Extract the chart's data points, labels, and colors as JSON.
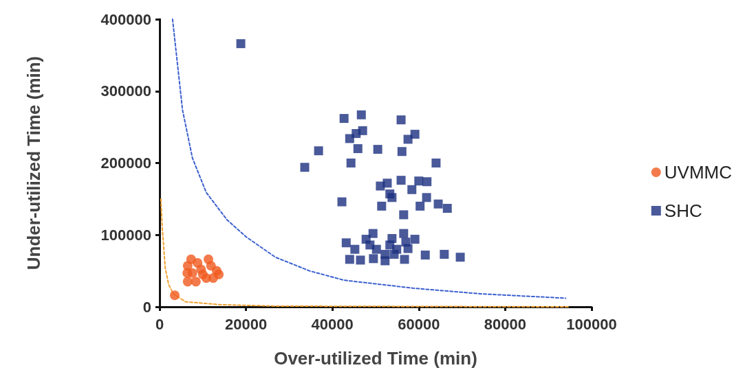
{
  "chart_data": {
    "type": "scatter",
    "xlabel": "Over-utilized Time (min)",
    "ylabel": "Under-utilized Time (min)",
    "xlim": [
      0,
      100000
    ],
    "xticks": [
      0,
      20000,
      40000,
      60000,
      80000,
      100000
    ],
    "ylim": [
      0,
      400000
    ],
    "yticks": [
      0,
      100000,
      200000,
      300000,
      400000
    ],
    "grid": false,
    "legend": "right",
    "series": [
      {
        "name": "UVMMC",
        "color": "#f05a1e",
        "marker": "circle",
        "x": [
          3500,
          7300,
          6500,
          8800,
          9600,
          11300,
          11900,
          13200,
          13700,
          6500,
          8400,
          10800,
          10000,
          7600,
          6400,
          12400
        ],
        "values": [
          16000,
          66000,
          57000,
          61000,
          52000,
          66000,
          57000,
          50000,
          45000,
          35000,
          35000,
          40000,
          45000,
          47000,
          47000,
          40000
        ]
      },
      {
        "name": "SHC",
        "color": "#1c2f7f",
        "marker": "square",
        "x": [
          18800,
          42700,
          46700,
          55900,
          47000,
          45500,
          44000,
          59100,
          57500,
          36800,
          45900,
          50500,
          56100,
          44300,
          33600,
          64000,
          42200,
          51100,
          52700,
          55900,
          60000,
          61900,
          58400,
          53300,
          53800,
          61800,
          60300,
          51400,
          64500,
          66600,
          56500,
          43200,
          45200,
          44000,
          46500,
          47800,
          49400,
          48700,
          50200,
          49500,
          52200,
          52200,
          53800,
          53300,
          54900,
          56500,
          57000,
          59100,
          57500,
          56700,
          61500,
          65900,
          69600,
          54300
        ],
        "values": [
          366000,
          262000,
          267000,
          260000,
          245000,
          241000,
          234000,
          240000,
          233000,
          217000,
          220000,
          219000,
          216000,
          200000,
          194000,
          200000,
          146000,
          168000,
          172000,
          176000,
          175000,
          174000,
          163000,
          157000,
          152000,
          152000,
          140000,
          140000,
          143000,
          137000,
          128000,
          89000,
          80000,
          66000,
          65000,
          94000,
          102000,
          86000,
          80000,
          67000,
          73000,
          64000,
          95000,
          86000,
          80000,
          102000,
          90000,
          94000,
          81000,
          66000,
          72000,
          73000,
          69000,
          73000
        ]
      },
      {
        "type": "line",
        "color": "#f0a030",
        "marker": "none",
        "line_style": "dashed",
        "x": [
          300,
          600,
          1300,
          2100,
          3200,
          6000,
          14000,
          26800,
          95000
        ],
        "values": [
          150000,
          112000,
          54000,
          31000,
          18000,
          7000,
          3000,
          1000,
          0
        ]
      },
      {
        "type": "line",
        "color": "#3a5ecf",
        "marker": "none",
        "line_style": "dashed",
        "x": [
          3000,
          5300,
          7600,
          10800,
          15600,
          20100,
          26800,
          34700,
          42700,
          58600,
          74500,
          94000
        ],
        "values": [
          400000,
          274000,
          207000,
          159000,
          121000,
          97000,
          69000,
          50000,
          37000,
          26000,
          18000,
          12000
        ]
      }
    ]
  }
}
